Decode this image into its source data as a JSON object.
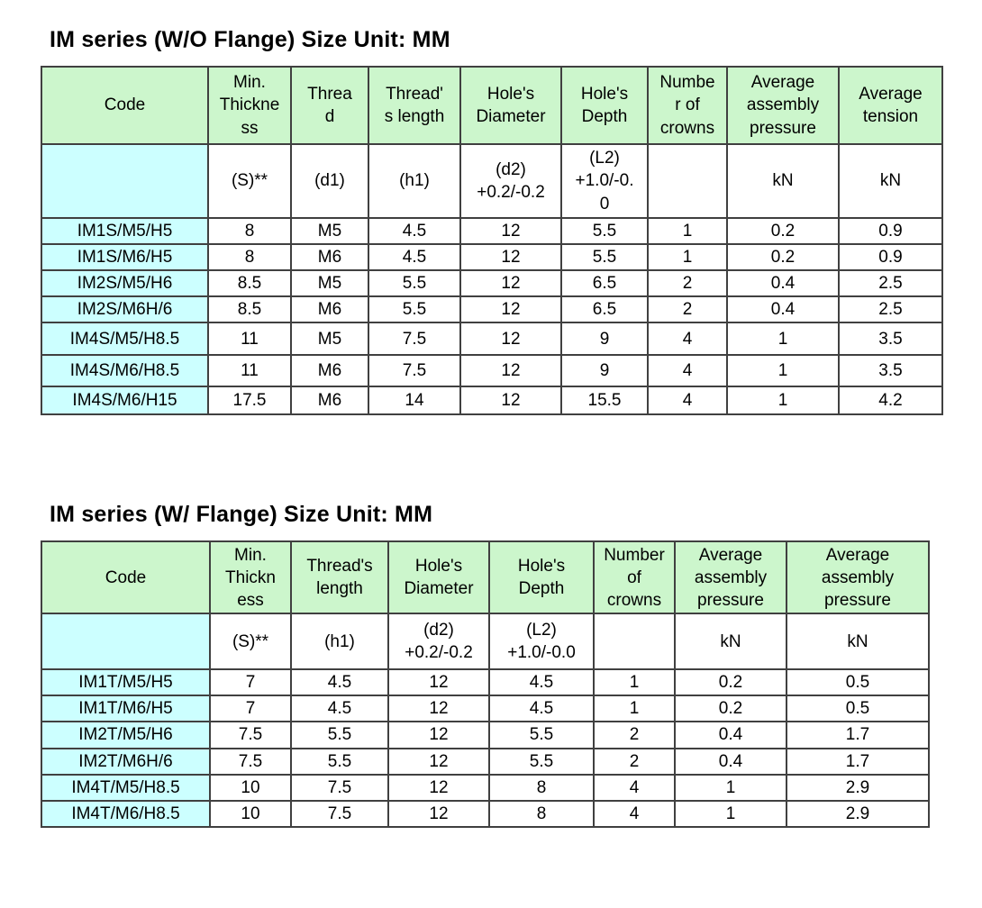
{
  "colors": {
    "header_bg": "#ccf6cc",
    "code_bg": "#ccffff",
    "border": "#404040"
  },
  "tables": [
    {
      "title": "IM series (W/O Flange) Size Unit:  MM",
      "headers": [
        "Code",
        "Min.\nThickne\nss",
        "Threa\nd",
        "Thread'\ns length",
        "Hole's\nDiameter",
        "Hole's\nDepth",
        "Numbe\nr of\ncrowns",
        "Average\nassembly\npressure",
        "Average\ntension"
      ],
      "subheaders": [
        "",
        "(S)**",
        "(d1)",
        "(h1)",
        "(d2)\n+0.2/-0.2",
        "(L2)\n+1.0/-0.\n0",
        "",
        "kN",
        "kN"
      ],
      "rows": [
        [
          "IM1S/M5/H5",
          "8",
          "M5",
          "4.5",
          "12",
          "5.5",
          "1",
          "0.2",
          "0.9"
        ],
        [
          "IM1S/M6/H5",
          "8",
          "M6",
          "4.5",
          "12",
          "5.5",
          "1",
          "0.2",
          "0.9"
        ],
        [
          "IM2S/M5/H6",
          "8.5",
          "M5",
          "5.5",
          "12",
          "6.5",
          "2",
          "0.4",
          "2.5"
        ],
        [
          "IM2S/M6H/6",
          "8.5",
          "M6",
          "5.5",
          "12",
          "6.5",
          "2",
          "0.4",
          "2.5"
        ],
        [
          "IM4S/M5/H8.5",
          "11",
          "M5",
          "7.5",
          "12",
          "9",
          "4",
          "1",
          "3.5"
        ],
        [
          "IM4S/M6/H8.5",
          "11",
          "M6",
          "7.5",
          "12",
          "9",
          "4",
          "1",
          "3.5"
        ],
        [
          "IM4S/M6/H15",
          "17.5",
          "M6",
          "14",
          "12",
          "15.5",
          "4",
          "1",
          "4.2"
        ]
      ]
    },
    {
      "title": "IM series (W/ Flange) Size Unit:  MM",
      "headers": [
        "Code",
        "Min.\nThickn\ness",
        "Thread's\nlength",
        "Hole's\nDiameter",
        "Hole's\nDepth",
        "Number\nof\ncrowns",
        "Average\nassembly\npressure",
        "Average\nassembly\npressure"
      ],
      "subheaders": [
        "",
        "(S)**",
        "(h1)",
        "(d2)\n+0.2/-0.2",
        "(L2)\n+1.0/-0.0",
        "",
        "kN",
        "kN"
      ],
      "rows": [
        [
          "IM1T/M5/H5",
          "7",
          "4.5",
          "12",
          "4.5",
          "1",
          "0.2",
          "0.5"
        ],
        [
          "IM1T/M6/H5",
          "7",
          "4.5",
          "12",
          "4.5",
          "1",
          "0.2",
          "0.5"
        ],
        [
          "IM2T/M5/H6",
          "7.5",
          "5.5",
          "12",
          "5.5",
          "2",
          "0.4",
          "1.7"
        ],
        [
          "IM2T/M6H/6",
          "7.5",
          "5.5",
          "12",
          "5.5",
          "2",
          "0.4",
          "1.7"
        ],
        [
          "IM4T/M5/H8.5",
          "10",
          "7.5",
          "12",
          "8",
          "4",
          "1",
          "2.9"
        ],
        [
          "IM4T/M6/H8.5",
          "10",
          "7.5",
          "12",
          "8",
          "4",
          "1",
          "2.9"
        ]
      ]
    }
  ]
}
